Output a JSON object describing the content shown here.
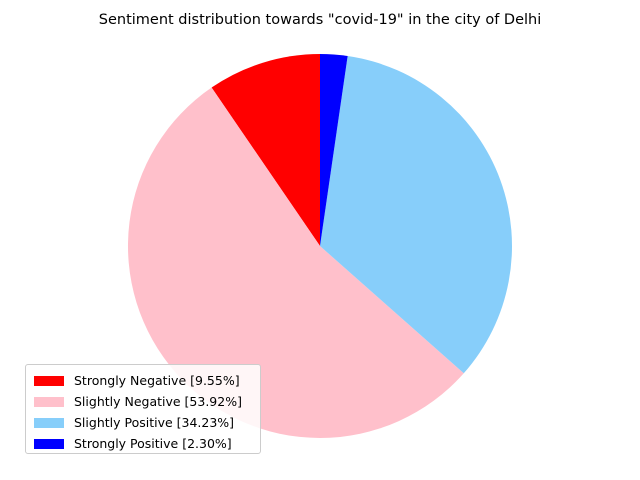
{
  "chart_data": {
    "type": "pie",
    "title": "Sentiment distribution towards \"covid-19\" in the city of Delhi",
    "categories": [
      "Strongly Negative",
      "Slightly Negative",
      "Slightly Positive",
      "Strongly Positive"
    ],
    "values": [
      9.55,
      53.92,
      34.23,
      2.3
    ],
    "colors": [
      "#ff0000",
      "#ffc0cb",
      "#87cefa",
      "#0000ff"
    ],
    "start_angle_deg": 90,
    "direction": "counterclockwise",
    "legend_labels": [
      "Strongly Negative [9.55%]",
      "Slightly Negative [53.92%]",
      "Slightly Positive [34.23%]",
      "Strongly Positive [2.30%]"
    ],
    "legend_position": "lower-left"
  }
}
